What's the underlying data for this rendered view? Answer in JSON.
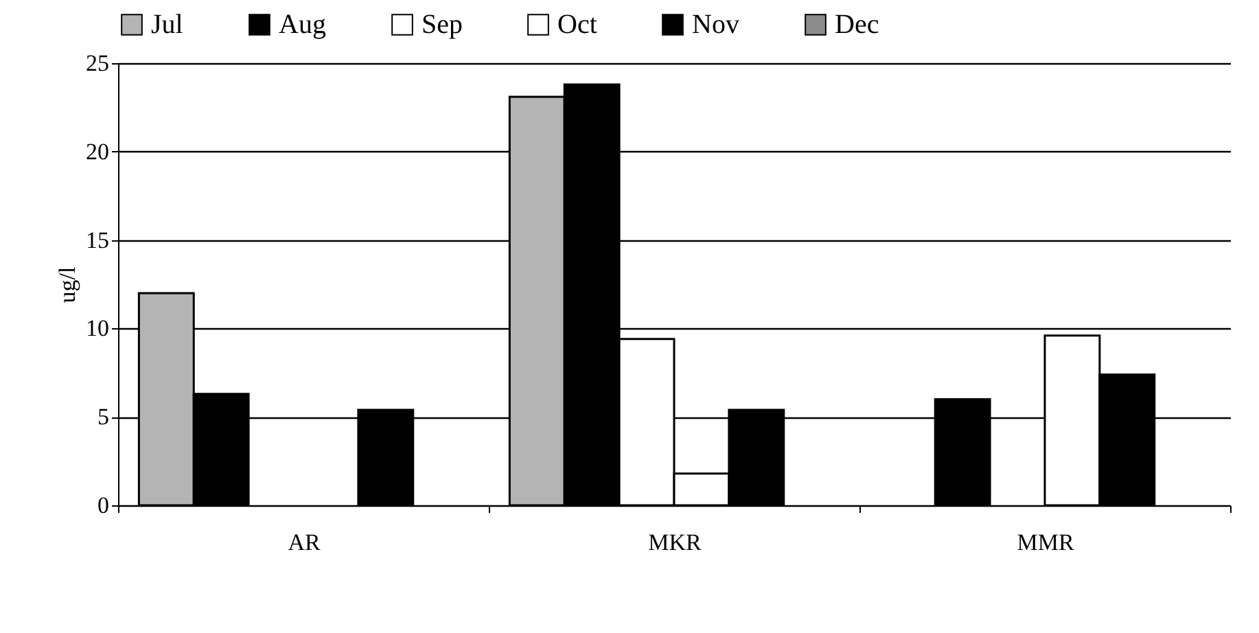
{
  "chart_data": {
    "type": "bar",
    "ylabel": "ug/l",
    "categories": [
      "AR",
      "MKR",
      "MMR"
    ],
    "series": [
      {
        "name": "Jul",
        "color": "#b4b4b4",
        "values": [
          12,
          23.1,
          null
        ]
      },
      {
        "name": "Aug",
        "color": "#000000",
        "values": [
          6.3,
          23.8,
          6.0
        ]
      },
      {
        "name": "Sep",
        "color": "#ffffff",
        "values": [
          null,
          9.4,
          null
        ]
      },
      {
        "name": "Oct",
        "color": "#ffffff",
        "values": [
          null,
          1.8,
          9.6
        ]
      },
      {
        "name": "Nov",
        "color": "#000000",
        "values": [
          5.4,
          5.4,
          7.4
        ]
      },
      {
        "name": "Dec",
        "color": "#8c8c8c",
        "values": [
          null,
          null,
          null
        ]
      }
    ],
    "ylim": [
      0,
      25
    ],
    "yticks": [
      0,
      5,
      10,
      15,
      20,
      25
    ],
    "grid": "y",
    "legend": "top"
  }
}
